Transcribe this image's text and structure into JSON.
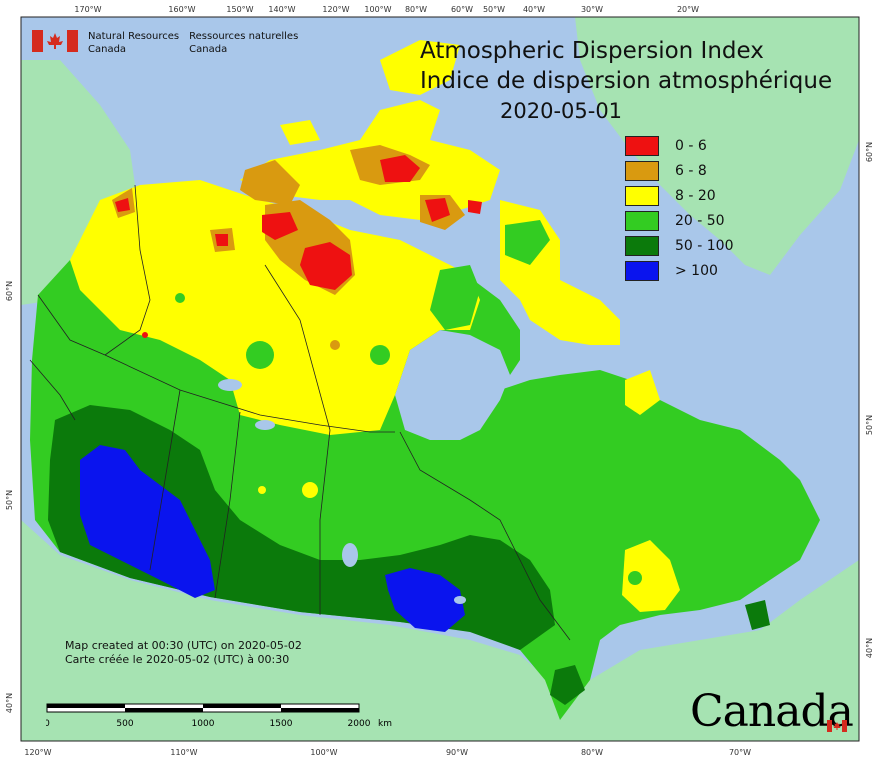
{
  "title_en": "Atmospheric Dispersion Index",
  "title_fr": "Indice de dispersion atmosphérique",
  "date": "2020-05-01",
  "agency": {
    "en_line1": "Natural Resources",
    "en_line2": "Canada",
    "fr_line1": "Ressources naturelles",
    "fr_line2": "Canada"
  },
  "legend": [
    {
      "label": "0 - 6",
      "color": "#ee1111"
    },
    {
      "label": "6 - 8",
      "color": "#d99a10"
    },
    {
      "label": "8 - 20",
      "color": "#ffff00"
    },
    {
      "label": "20 - 50",
      "color": "#33cc22"
    },
    {
      "label": "50 - 100",
      "color": "#0b7a0b"
    },
    {
      "label": "> 100",
      "color": "#0a14ee"
    }
  ],
  "credit": {
    "en": "Map created at 00:30 (UTC) on 2020-05-02",
    "fr": "Carte créée le 2020-05-02 (UTC) à 00:30"
  },
  "scale_bar": {
    "labels": [
      "0",
      "500",
      "1000",
      "1500",
      "2000"
    ],
    "unit": "km"
  },
  "top_ticks": [
    "170°W",
    "160°W",
    "150°W",
    "140°W",
    "120°W",
    "100°W",
    "80°W",
    "60°W",
    "50°W",
    "40°W",
    "30°W",
    "20°W"
  ],
  "bottom_ticks": [
    "120°W",
    "110°W",
    "100°W",
    "90°W",
    "80°W",
    "70°W"
  ],
  "left_ticks": [
    "60°N",
    "50°N",
    "40°N"
  ],
  "right_ticks": [
    "60°N",
    "50°N",
    "40°N"
  ],
  "wordmark": "Canada",
  "colors": {
    "water": "#a9c7ea",
    "land_outside": "#a6e3b2",
    "border": "#222222"
  }
}
